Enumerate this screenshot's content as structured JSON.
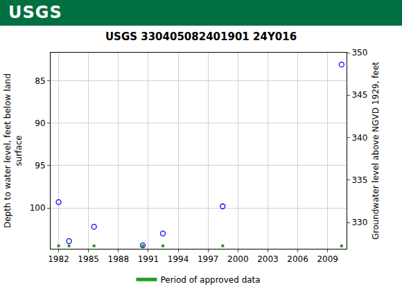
{
  "header": {
    "logo": "USGS"
  },
  "chart_data": {
    "type": "scatter",
    "title": "USGS 330405082401901 24Y016",
    "y_label": [
      "Depth to water level, feet below land",
      "surface"
    ],
    "y2_label": "Groundwater level above NGVD 1929, feet",
    "x": [
      1982.0,
      1983.05,
      1985.56,
      1990.45,
      1992.47,
      1998.47,
      2010.4
    ],
    "values": [
      99.3,
      103.9,
      102.2,
      104.4,
      103.0,
      99.8,
      83.1
    ],
    "color": "#0000ff",
    "marker": "circle-open",
    "approved_periods": {
      "name": "Period of approved data",
      "color": "#1f9e1f",
      "x": [
        1982.0,
        1983.05,
        1985.56,
        1990.45,
        1992.47,
        1998.47,
        2010.4
      ]
    },
    "xlim": [
      1981.2,
      2010.9
    ],
    "xticks": [
      1982,
      1985,
      1988,
      1991,
      1994,
      1997,
      2000,
      2003,
      2006,
      2009
    ],
    "ylim": [
      104.8,
      81.7
    ],
    "yticks": [
      85,
      90,
      95,
      100
    ],
    "y2lim": [
      326.9,
      350.0
    ],
    "y2ticks": [
      330,
      335,
      340,
      345,
      350
    ],
    "grid": true,
    "legend": "bottom"
  }
}
